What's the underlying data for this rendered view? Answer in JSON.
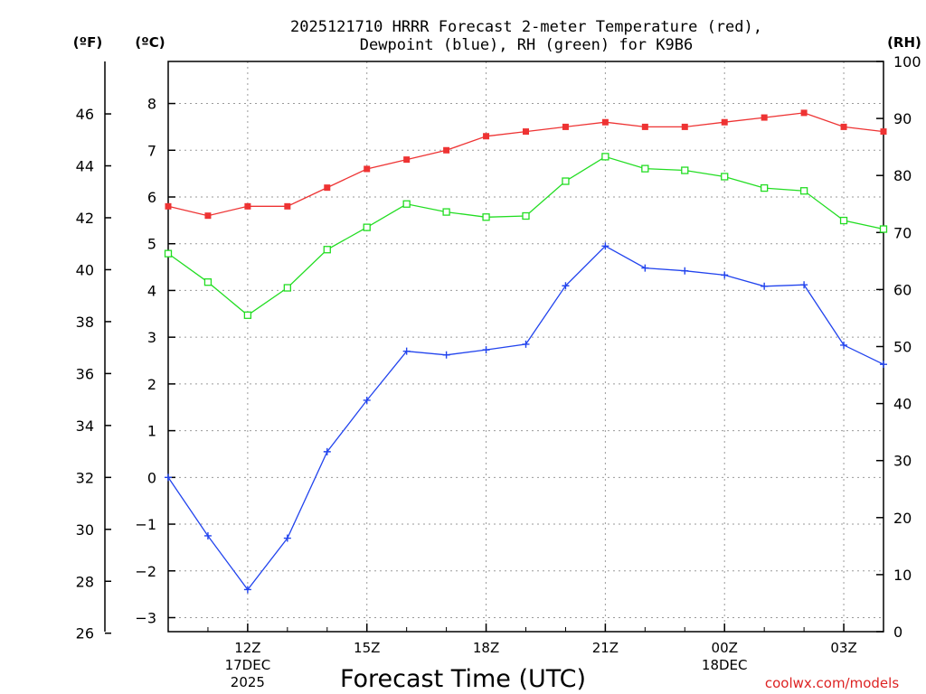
{
  "chart_data": {
    "type": "line",
    "title_line1": "2025121710 HRRR Forecast 2-meter Temperature (red),",
    "title_line2": "Dewpoint (blue), RH (green) for K9B6",
    "xlabel": "Forecast Time (UTC)",
    "credit": "coolwx.com/models",
    "units": {
      "fahrenheit": "(ºF)",
      "celsius": "(ºC)",
      "rh": "(RH)"
    },
    "x_hours": [
      10,
      11,
      12,
      13,
      14,
      15,
      16,
      17,
      18,
      19,
      20,
      21,
      22,
      23,
      24,
      25,
      26,
      27,
      28
    ],
    "xlim": [
      10,
      28
    ],
    "x_ticks": [
      {
        "hour": 12,
        "label": "12Z",
        "sub1": "17DEC",
        "sub2": "2025"
      },
      {
        "hour": 15,
        "label": "15Z",
        "sub1": "",
        "sub2": ""
      },
      {
        "hour": 18,
        "label": "18Z",
        "sub1": "",
        "sub2": ""
      },
      {
        "hour": 21,
        "label": "21Z",
        "sub1": "",
        "sub2": ""
      },
      {
        "hour": 24,
        "label": "00Z",
        "sub1": "18DEC",
        "sub2": ""
      },
      {
        "hour": 27,
        "label": "03Z",
        "sub1": "",
        "sub2": ""
      }
    ],
    "celsius_axis": {
      "ylim": [
        -3.3,
        8.9
      ],
      "ticks": [
        -3,
        -2,
        -1,
        0,
        1,
        2,
        3,
        4,
        5,
        6,
        7,
        8
      ]
    },
    "fahrenheit_ticks": [
      26,
      28,
      30,
      32,
      34,
      36,
      38,
      40,
      42,
      44,
      46
    ],
    "rh_axis": {
      "ylim": [
        0,
        100
      ],
      "ticks": [
        0,
        10,
        20,
        30,
        40,
        50,
        60,
        70,
        80,
        90,
        100
      ]
    },
    "series": [
      {
        "name": "Temperature",
        "axis": "celsius",
        "color": "#ee3333",
        "marker": "filled-square",
        "values": [
          5.8,
          5.6,
          5.8,
          5.8,
          6.2,
          6.6,
          6.8,
          7.0,
          7.3,
          7.4,
          7.5,
          7.6,
          7.5,
          7.5,
          7.6,
          7.7,
          7.8,
          7.5,
          7.4
        ]
      },
      {
        "name": "Dewpoint",
        "axis": "celsius",
        "color": "#2244ee",
        "marker": "plus",
        "values": [
          0.0,
          -1.25,
          -2.4,
          -1.3,
          0.55,
          1.65,
          2.7,
          2.62,
          2.73,
          2.85,
          4.1,
          4.95,
          4.48,
          4.42,
          4.33,
          4.09,
          4.12,
          2.83,
          2.42
        ]
      },
      {
        "name": "RH",
        "axis": "rh",
        "color": "#22dd22",
        "marker": "open-square",
        "values": [
          66.3,
          61.3,
          55.5,
          60.3,
          67.0,
          70.9,
          75.0,
          73.6,
          72.7,
          72.9,
          79.0,
          83.3,
          81.2,
          80.9,
          79.8,
          77.8,
          77.3,
          72.1,
          70.6
        ]
      }
    ]
  }
}
